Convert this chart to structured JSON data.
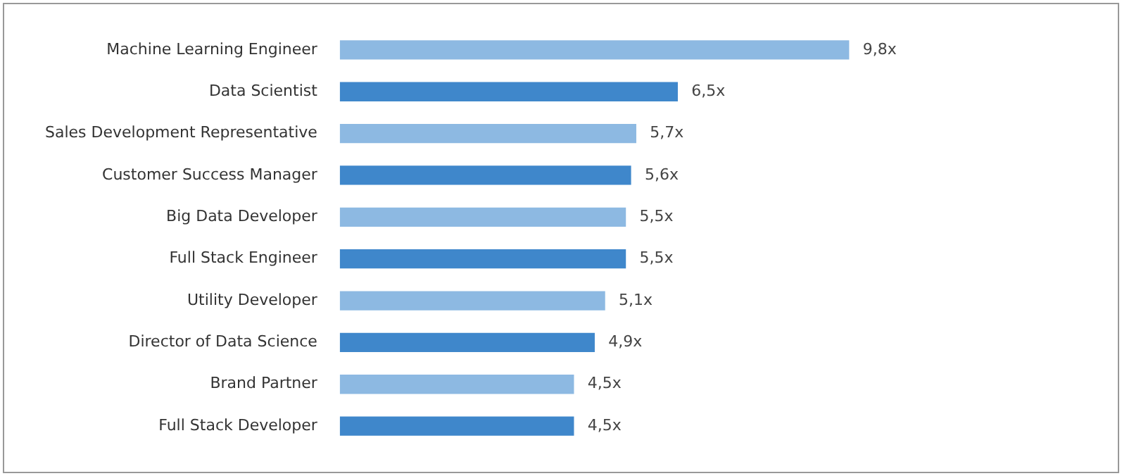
{
  "chart_data": {
    "type": "bar",
    "orientation": "horizontal",
    "categories": [
      "Machine Learning Engineer",
      "Data Scientist",
      "Sales Development Representative",
      "Customer Success Manager",
      "Big Data Developer",
      "Full Stack Engineer",
      "Utility Developer",
      "Director of Data Science",
      "Brand Partner",
      "Full Stack Developer"
    ],
    "values": [
      9.8,
      6.5,
      5.7,
      5.6,
      5.5,
      5.5,
      5.1,
      4.9,
      4.5,
      4.5
    ],
    "colors": [
      "#8db9e2",
      "#3f87cb",
      "#8db9e2",
      "#3f87cb",
      "#8db9e2",
      "#3f87cb",
      "#8db9e2",
      "#3f87cb",
      "#8db9e2",
      "#3f87cb"
    ],
    "value_labels": [
      "9,8x",
      "6,5x",
      "5,7x",
      "5,6x",
      "5,5x",
      "5,5x",
      "5,1x",
      "4,9x",
      "4,5x",
      "4,5x"
    ],
    "legend": false
  }
}
